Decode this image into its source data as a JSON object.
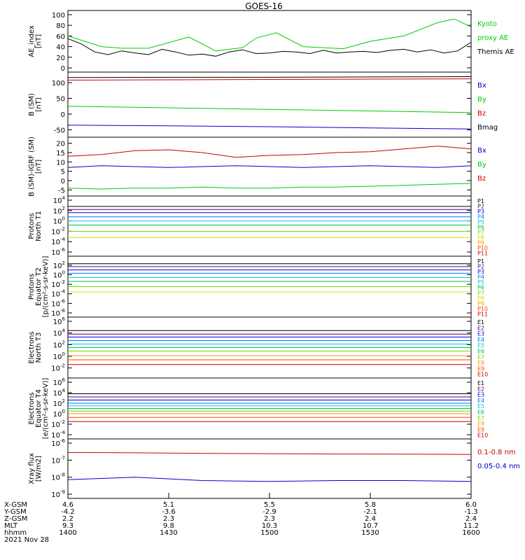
{
  "title": "GOES-16",
  "panels": [
    {
      "id": "ae",
      "ylabel": [
        "AE_index",
        "[nT]"
      ],
      "yscale": "linear",
      "yticks": [
        "0",
        "20",
        "40",
        "60",
        "80",
        "100"
      ],
      "legend": [
        {
          "text": "Kyoto",
          "color": "#00cc00"
        },
        {
          "text": "proxy AE",
          "color": "#00cc00"
        },
        {
          "text": "Themis AE",
          "color": "#000000"
        }
      ]
    },
    {
      "id": "bsm",
      "ylabel": [
        "B (SM)",
        "[nT]"
      ],
      "yscale": "linear",
      "yticks": [
        "-50",
        "0",
        "50",
        "100"
      ],
      "legend": [
        {
          "text": "Bx",
          "color": "#0000cc"
        },
        {
          "text": "By",
          "color": "#00cc00"
        },
        {
          "text": "Bz",
          "color": "#cc0000"
        },
        {
          "text": "Bmag",
          "color": "#000000"
        }
      ]
    },
    {
      "id": "bigrf",
      "ylabel": [
        "B (SM)-IGRF (SM)",
        "[nT]"
      ],
      "yscale": "linear",
      "yticks": [
        "-5",
        "0",
        "5",
        "10",
        "15",
        "20"
      ],
      "legend": [
        {
          "text": "Bx",
          "color": "#0000cc"
        },
        {
          "text": "By",
          "color": "#00cc00"
        },
        {
          "text": "Bz",
          "color": "#cc0000"
        }
      ]
    },
    {
      "id": "pn",
      "ylabel": [
        "Protons",
        "North T1"
      ],
      "yscale": "log",
      "yticks": [
        "10-6",
        "10-4",
        "10-2",
        "100",
        "102",
        "104"
      ],
      "legend": [
        {
          "text": "P1",
          "color": "#000000"
        },
        {
          "text": "P2",
          "color": "#550077"
        },
        {
          "text": "P3",
          "color": "#0000dd"
        },
        {
          "text": "P4",
          "color": "#0077ff"
        },
        {
          "text": "P5",
          "color": "#00cccc"
        },
        {
          "text": "P6",
          "color": "#00bb55"
        },
        {
          "text": "P7",
          "color": "#66dd00"
        },
        {
          "text": "P8",
          "color": "#dddd00"
        },
        {
          "text": "P9",
          "color": "#ff9900"
        },
        {
          "text": "P10",
          "color": "#ff4400"
        },
        {
          "text": "P11",
          "color": "#cc0000"
        }
      ]
    },
    {
      "id": "pe",
      "ylabel": [
        "Protons",
        "Equator T2",
        "[p/(cm²-s-sr-keV)]"
      ],
      "yscale": "log",
      "yticks": [
        "10-8",
        "10-6",
        "10-4",
        "10-2",
        "100",
        "102"
      ],
      "legend": [
        {
          "text": "P1",
          "color": "#000000"
        },
        {
          "text": "P2",
          "color": "#550077"
        },
        {
          "text": "P3",
          "color": "#0000dd"
        },
        {
          "text": "P4",
          "color": "#0077ff"
        },
        {
          "text": "P5",
          "color": "#00cccc"
        },
        {
          "text": "P6",
          "color": "#00bb55"
        },
        {
          "text": "P7",
          "color": "#66dd00"
        },
        {
          "text": "P8",
          "color": "#dddd00"
        },
        {
          "text": "P9",
          "color": "#ff9900"
        },
        {
          "text": "P10",
          "color": "#ff4400"
        },
        {
          "text": "P11",
          "color": "#cc0000"
        }
      ]
    },
    {
      "id": "en",
      "ylabel": [
        "Electrons",
        "North T3"
      ],
      "yscale": "log",
      "yticks": [
        "10-2",
        "100",
        "102",
        "104",
        "106"
      ],
      "legend": [
        {
          "text": "E1",
          "color": "#000000"
        },
        {
          "text": "E2",
          "color": "#550077"
        },
        {
          "text": "E3",
          "color": "#0000dd"
        },
        {
          "text": "E4",
          "color": "#0077ff"
        },
        {
          "text": "E5",
          "color": "#00cccc"
        },
        {
          "text": "E6",
          "color": "#00bb55"
        },
        {
          "text": "E7",
          "color": "#66dd00"
        },
        {
          "text": "E8",
          "color": "#ff9900"
        },
        {
          "text": "E9",
          "color": "#ff4400"
        },
        {
          "text": "E10",
          "color": "#cc0000"
        }
      ]
    },
    {
      "id": "ee",
      "ylabel": [
        "Electrons",
        "Equator T4",
        "[e/(cm²-s-sr-keV)]"
      ],
      "yscale": "log",
      "yticks": [
        "10-4",
        "10-2",
        "100",
        "102",
        "104",
        "106"
      ],
      "legend": [
        {
          "text": "E1",
          "color": "#000000"
        },
        {
          "text": "E2",
          "color": "#550077"
        },
        {
          "text": "E3",
          "color": "#0000dd"
        },
        {
          "text": "E4",
          "color": "#0077ff"
        },
        {
          "text": "E5",
          "color": "#00cccc"
        },
        {
          "text": "E6",
          "color": "#00bb55"
        },
        {
          "text": "E7",
          "color": "#66dd00"
        },
        {
          "text": "E8",
          "color": "#ff9900"
        },
        {
          "text": "E9",
          "color": "#ff4400"
        },
        {
          "text": "E10",
          "color": "#cc0000"
        }
      ]
    },
    {
      "id": "xray",
      "ylabel": [
        "Xray flux",
        "[W/m2]"
      ],
      "yscale": "log",
      "yticks": [
        "10-9",
        "10-8",
        "10-7",
        "10-6"
      ],
      "legend": [
        {
          "text": "0.1-0.8 nm",
          "color": "#cc0000"
        },
        {
          "text": "0.05-0.4 nm",
          "color": "#0000cc"
        }
      ]
    }
  ],
  "xaxis": {
    "row_labels": [
      "X-GSM",
      "Y-GSM",
      "Z-GSM",
      "MLT",
      "hhmm"
    ],
    "columns": [
      [
        "4.6",
        "-4.2",
        "2.2",
        "9.3",
        "1400"
      ],
      [
        "5.1",
        "-3.6",
        "2.3",
        "9.8",
        "1430"
      ],
      [
        "5.5",
        "-2.9",
        "2.3",
        "10.3",
        "1500"
      ],
      [
        "5.8",
        "-2.1",
        "2.4",
        "10.7",
        "1530"
      ],
      [
        "6.0",
        "-1.3",
        "2.4",
        "11.2",
        "1600"
      ]
    ],
    "date": "2021 Nov 28"
  },
  "chart_data": [
    {
      "type": "line",
      "title": "GOES-16",
      "ylabel": "AE_index [nT]",
      "ylim": [
        0,
        100
      ],
      "x": [
        "1400",
        "1430",
        "1500",
        "1530",
        "1600"
      ],
      "series": [
        {
          "name": "Kyoto proxy AE",
          "color": "#00cc00",
          "x": [
            0,
            6,
            10,
            16,
            24,
            28,
            36,
            44,
            52,
            56,
            62,
            70,
            76,
            82,
            90,
            100,
            110,
            115,
            120
          ],
          "values": [
            60,
            48,
            40,
            37,
            37,
            44,
            58,
            32,
            38,
            56,
            66,
            40,
            38,
            36,
            50,
            60,
            85,
            92,
            77
          ]
        },
        {
          "name": "Themis AE",
          "color": "#000000",
          "x": [
            0,
            4,
            8,
            12,
            16,
            20,
            24,
            28,
            32,
            36,
            40,
            44,
            48,
            52,
            56,
            60,
            64,
            68,
            72,
            76,
            80,
            84,
            88,
            92,
            96,
            100,
            104,
            108,
            112,
            116,
            120
          ],
          "values": [
            55,
            45,
            30,
            25,
            32,
            28,
            25,
            35,
            30,
            24,
            26,
            22,
            30,
            34,
            27,
            28,
            31,
            30,
            27,
            33,
            28,
            30,
            31,
            29,
            33,
            35,
            30,
            34,
            28,
            32,
            48
          ]
        }
      ]
    },
    {
      "type": "line",
      "ylabel": "B (SM) [nT]",
      "ylim": [
        -60,
        120
      ],
      "series": [
        {
          "name": "Bx",
          "color": "#0000cc",
          "x": [
            0,
            30,
            60,
            90,
            120
          ],
          "values": [
            -35,
            -37,
            -40,
            -44,
            -47
          ]
        },
        {
          "name": "By",
          "color": "#00cc00",
          "x": [
            0,
            30,
            60,
            90,
            120
          ],
          "values": [
            25,
            20,
            15,
            10,
            5
          ]
        },
        {
          "name": "Bz",
          "color": "#cc0000",
          "x": [
            0,
            30,
            60,
            90,
            120
          ],
          "values": [
            108,
            109,
            110,
            111,
            112
          ]
        },
        {
          "name": "Bmag",
          "color": "#000000",
          "x": [
            0,
            30,
            60,
            90,
            120
          ],
          "values": [
            116,
            117,
            117,
            118,
            119
          ]
        }
      ]
    },
    {
      "type": "line",
      "ylabel": "B (SM)-IGRF (SM) [nT]",
      "ylim": [
        -6,
        21
      ],
      "series": [
        {
          "name": "Bx",
          "color": "#0000cc",
          "x": [
            0,
            10,
            20,
            30,
            40,
            50,
            60,
            70,
            80,
            90,
            100,
            110,
            120
          ],
          "values": [
            7,
            8,
            7.5,
            7,
            7.5,
            8,
            7.5,
            7,
            7.5,
            8,
            7.5,
            7,
            8
          ]
        },
        {
          "name": "By",
          "color": "#00cc00",
          "x": [
            0,
            10,
            20,
            30,
            40,
            50,
            60,
            70,
            80,
            90,
            100,
            110,
            120
          ],
          "values": [
            -4,
            -4.5,
            -4,
            -4,
            -3.5,
            -4,
            -4,
            -3.5,
            -3.5,
            -3,
            -2.5,
            -2,
            -1.5
          ]
        },
        {
          "name": "Bz",
          "color": "#cc0000",
          "x": [
            0,
            10,
            20,
            30,
            40,
            50,
            60,
            70,
            80,
            90,
            100,
            110,
            120
          ],
          "values": [
            13,
            14,
            16,
            16.5,
            15,
            12.5,
            13.5,
            14,
            15,
            15.5,
            17,
            18.5,
            17
          ]
        }
      ]
    },
    {
      "type": "line",
      "ylabel": "Protons North T1",
      "yscale": "log",
      "ylim": [
        "1e-6",
        "1e4"
      ],
      "series_log10": [
        {
          "name": "P1",
          "color": "#000000",
          "values": [
            2.8
          ]
        },
        {
          "name": "P2",
          "color": "#550077",
          "values": [
            2.2
          ]
        },
        {
          "name": "P3",
          "color": "#0000dd",
          "values": [
            1.6
          ]
        },
        {
          "name": "P4",
          "color": "#0077ff",
          "values": [
            0.8
          ]
        },
        {
          "name": "P5",
          "color": "#00cccc",
          "values": [
            0.0
          ]
        },
        {
          "name": "P6",
          "color": "#00bb55",
          "values": [
            -0.8
          ]
        },
        {
          "name": "P7",
          "color": "#66dd00",
          "values": [
            -2.0
          ]
        },
        {
          "name": "P8",
          "color": "#dddd00",
          "values": [
            -3.2
          ]
        }
      ]
    },
    {
      "type": "line",
      "ylabel": "Protons Equator T2 [p/(cm²-s-sr-keV)]",
      "yscale": "log",
      "ylim": [
        "1e-8",
        "1e3"
      ],
      "series_log10": [
        {
          "name": "P1",
          "color": "#000000",
          "values": [
            2.3
          ]
        },
        {
          "name": "P2",
          "color": "#550077",
          "values": [
            1.7
          ]
        },
        {
          "name": "P3",
          "color": "#0000dd",
          "values": [
            1.0
          ]
        },
        {
          "name": "P4",
          "color": "#0077ff",
          "values": [
            0.3
          ]
        },
        {
          "name": "P5",
          "color": "#00cccc",
          "values": [
            -0.6
          ]
        },
        {
          "name": "P6",
          "color": "#00bb55",
          "values": [
            -1.4
          ]
        },
        {
          "name": "P7",
          "color": "#66dd00",
          "values": [
            -2.5
          ]
        },
        {
          "name": "P8",
          "color": "#dddd00",
          "values": [
            -3.6
          ]
        }
      ]
    },
    {
      "type": "line",
      "ylabel": "Electrons North T3",
      "yscale": "log",
      "ylim": [
        "1e-3",
        "1e6"
      ],
      "series_log10": [
        {
          "name": "E1",
          "color": "#000000",
          "values": [
            4.4
          ]
        },
        {
          "name": "E2",
          "color": "#550077",
          "values": [
            3.8
          ]
        },
        {
          "name": "E3",
          "color": "#0000dd",
          "values": [
            3.3
          ]
        },
        {
          "name": "E4",
          "color": "#0077ff",
          "values": [
            2.7
          ]
        },
        {
          "name": "E5",
          "color": "#00cccc",
          "values": [
            2.1
          ]
        },
        {
          "name": "E6",
          "color": "#00bb55",
          "values": [
            1.5
          ]
        },
        {
          "name": "E7",
          "color": "#66dd00",
          "values": [
            0.9
          ]
        },
        {
          "name": "E8",
          "color": "#ff9900",
          "values": [
            0.1
          ]
        },
        {
          "name": "E9",
          "color": "#ff4400",
          "values": [
            -0.6
          ]
        },
        {
          "name": "E10",
          "color": "#cc0000",
          "values": [
            -1.4
          ]
        }
      ]
    },
    {
      "type": "line",
      "ylabel": "Electrons Equator T4 [e/(cm²-s-sr-keV)]",
      "yscale": "log",
      "ylim": [
        "1e-4",
        "1e6"
      ],
      "series_log10": [
        {
          "name": "E1",
          "color": "#000000",
          "values": [
            3.8
          ]
        },
        {
          "name": "E2",
          "color": "#550077",
          "values": [
            3.2
          ]
        },
        {
          "name": "E3",
          "color": "#0000dd",
          "values": [
            2.6
          ]
        },
        {
          "name": "E4",
          "color": "#0077ff",
          "values": [
            2.0
          ]
        },
        {
          "name": "E5",
          "color": "#00cccc",
          "values": [
            1.5
          ]
        },
        {
          "name": "E6",
          "color": "#00bb55",
          "values": [
            1.0
          ]
        },
        {
          "name": "E7",
          "color": "#66dd00",
          "values": [
            0.5
          ]
        },
        {
          "name": "E8",
          "color": "#ff9900",
          "values": [
            0.0
          ]
        },
        {
          "name": "E9",
          "color": "#ff4400",
          "values": [
            -0.7
          ]
        },
        {
          "name": "E10",
          "color": "#cc0000",
          "values": [
            -1.5
          ]
        }
      ]
    },
    {
      "type": "line",
      "ylabel": "Xray flux [W/m2]",
      "yscale": "log",
      "ylim": [
        "1e-9",
        "1e-6"
      ],
      "series_log10": [
        {
          "name": "0.1-0.8 nm",
          "color": "#cc0000",
          "x": [
            0,
            20,
            40,
            60,
            80,
            100,
            120
          ],
          "values": [
            -6.55,
            -6.57,
            -6.6,
            -6.62,
            -6.64,
            -6.65,
            -6.66
          ]
        },
        {
          "name": "0.05-0.4 nm",
          "color": "#0000cc",
          "x": [
            0,
            20,
            40,
            60,
            80,
            100,
            120
          ],
          "values": [
            -8.15,
            -8.0,
            -8.2,
            -8.25,
            -8.2,
            -8.2,
            -8.25
          ]
        }
      ]
    }
  ]
}
